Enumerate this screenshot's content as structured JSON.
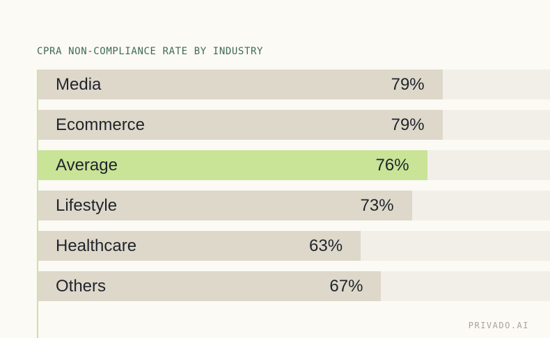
{
  "page": {
    "background_color": "#fbfaf4",
    "brand": "PRIVADO.AI",
    "brand_color": "#a7a29a"
  },
  "header": {
    "title": "CPRA NON-COMPLIANCE RATE BY INDUSTRY",
    "title_color": "#3f6a55"
  },
  "chart_data": {
    "type": "bar",
    "orientation": "horizontal",
    "title": "CPRA NON-COMPLIANCE RATE BY INDUSTRY",
    "categories": [
      "Media",
      "Ecommerce",
      "Average",
      "Lifestyle",
      "Healthcare",
      "Others"
    ],
    "values": [
      79,
      79,
      76,
      73,
      63,
      67
    ],
    "value_labels": [
      "79%",
      "79%",
      "76%",
      "73%",
      "63%",
      "67%"
    ],
    "unit": "%",
    "xlim": [
      0,
      100
    ],
    "highlight_index": 2,
    "highlight_category": "Average",
    "grid": false,
    "legend": false,
    "colors": {
      "bar": "#ded8ca",
      "highlight_bar": "#c9e397",
      "track": "#f2efe9",
      "axis_line": "#cfe0a4",
      "label_text": "#1f242c"
    }
  }
}
